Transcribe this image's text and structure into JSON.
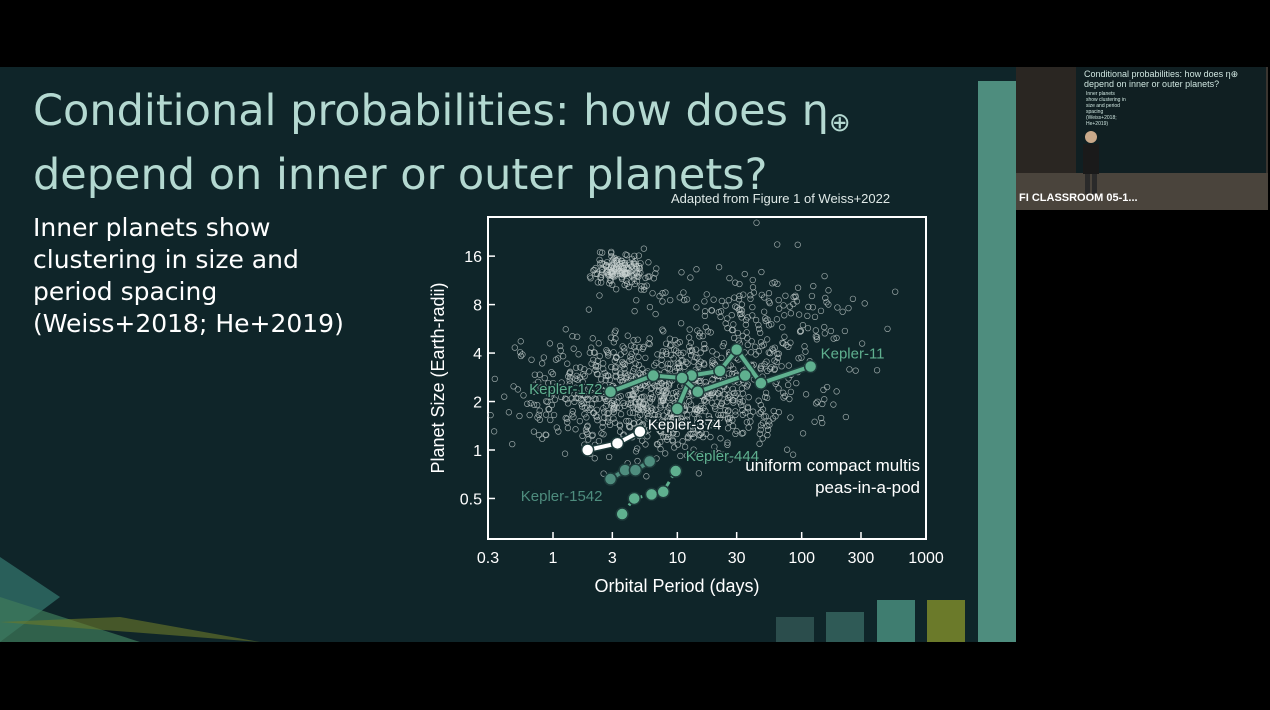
{
  "slide": {
    "title_line1": "Conditional probabilities: how does η",
    "title_sub": "⊕",
    "title_line2": "depend on inner or outer planets?",
    "bullet": "Inner planets show clustering in size and period spacing (Weiss+2018; He+2019)",
    "caption": "Adapted from Figure 1 of Weiss+2022"
  },
  "thumbnail": {
    "label": "FI CLASSROOM 05-1...",
    "mini_title": "Conditional probabilities: how does η⊕ depend on inner or outer planets?",
    "mini_bullet": "Inner planets show clustering in size and period spacing (Weiss+2018; He+2019)"
  },
  "colors": {
    "slide_bg": "#0f2529",
    "title": "#b4d9d1",
    "accent_green": "#5fb08f",
    "accent_teal": "#4e8d7e",
    "olive": "#6b7a2a"
  },
  "chart_data": {
    "type": "scatter",
    "xlabel": "Orbital Period (days)",
    "ylabel": "Planet Size (Earth-radii)",
    "xscale": "log",
    "yscale": "log",
    "xlim": [
      0.3,
      1000
    ],
    "ylim": [
      0.28,
      28
    ],
    "xticks": [
      0.3,
      1,
      3,
      10,
      30,
      100,
      300,
      1000
    ],
    "xtick_labels": [
      "0.3",
      "1",
      "3",
      "10",
      "30",
      "100",
      "300",
      "1000"
    ],
    "yticks": [
      0.5,
      1,
      2,
      4,
      8,
      16
    ],
    "ytick_labels": [
      "0.5",
      "1",
      "2",
      "4",
      "8",
      "16"
    ],
    "legend": [
      "uniform compact multis",
      "peas-in-a-pod"
    ],
    "legend_position": "bottom-right",
    "series": [
      {
        "name": "Kepler-11",
        "color": "#5fb08f",
        "x": [
          10,
          13,
          22,
          30,
          47,
          118
        ],
        "y": [
          1.8,
          2.9,
          3.1,
          4.2,
          2.6,
          3.3
        ]
      },
      {
        "name": "Kepler-172",
        "color": "#5fb08f",
        "x": [
          2.9,
          6.4,
          10.9,
          14.6,
          35.1
        ],
        "y": [
          2.3,
          2.9,
          2.8,
          2.3,
          2.9
        ]
      },
      {
        "name": "Kepler-374",
        "color": "#ffffff",
        "x": [
          1.9,
          3.3,
          5.0
        ],
        "y": [
          1.0,
          1.1,
          1.3
        ]
      },
      {
        "name": "Kepler-444",
        "color": "#5fb08f",
        "x": [
          3.6,
          4.5,
          6.2,
          7.7,
          9.7
        ],
        "y": [
          0.4,
          0.5,
          0.53,
          0.55,
          0.74
        ]
      },
      {
        "name": "Kepler-1542",
        "color": "#4e8d7e",
        "x": [
          2.9,
          3.8,
          4.6,
          5.99
        ],
        "y": [
          0.66,
          0.75,
          0.75,
          0.85
        ]
      }
    ]
  }
}
